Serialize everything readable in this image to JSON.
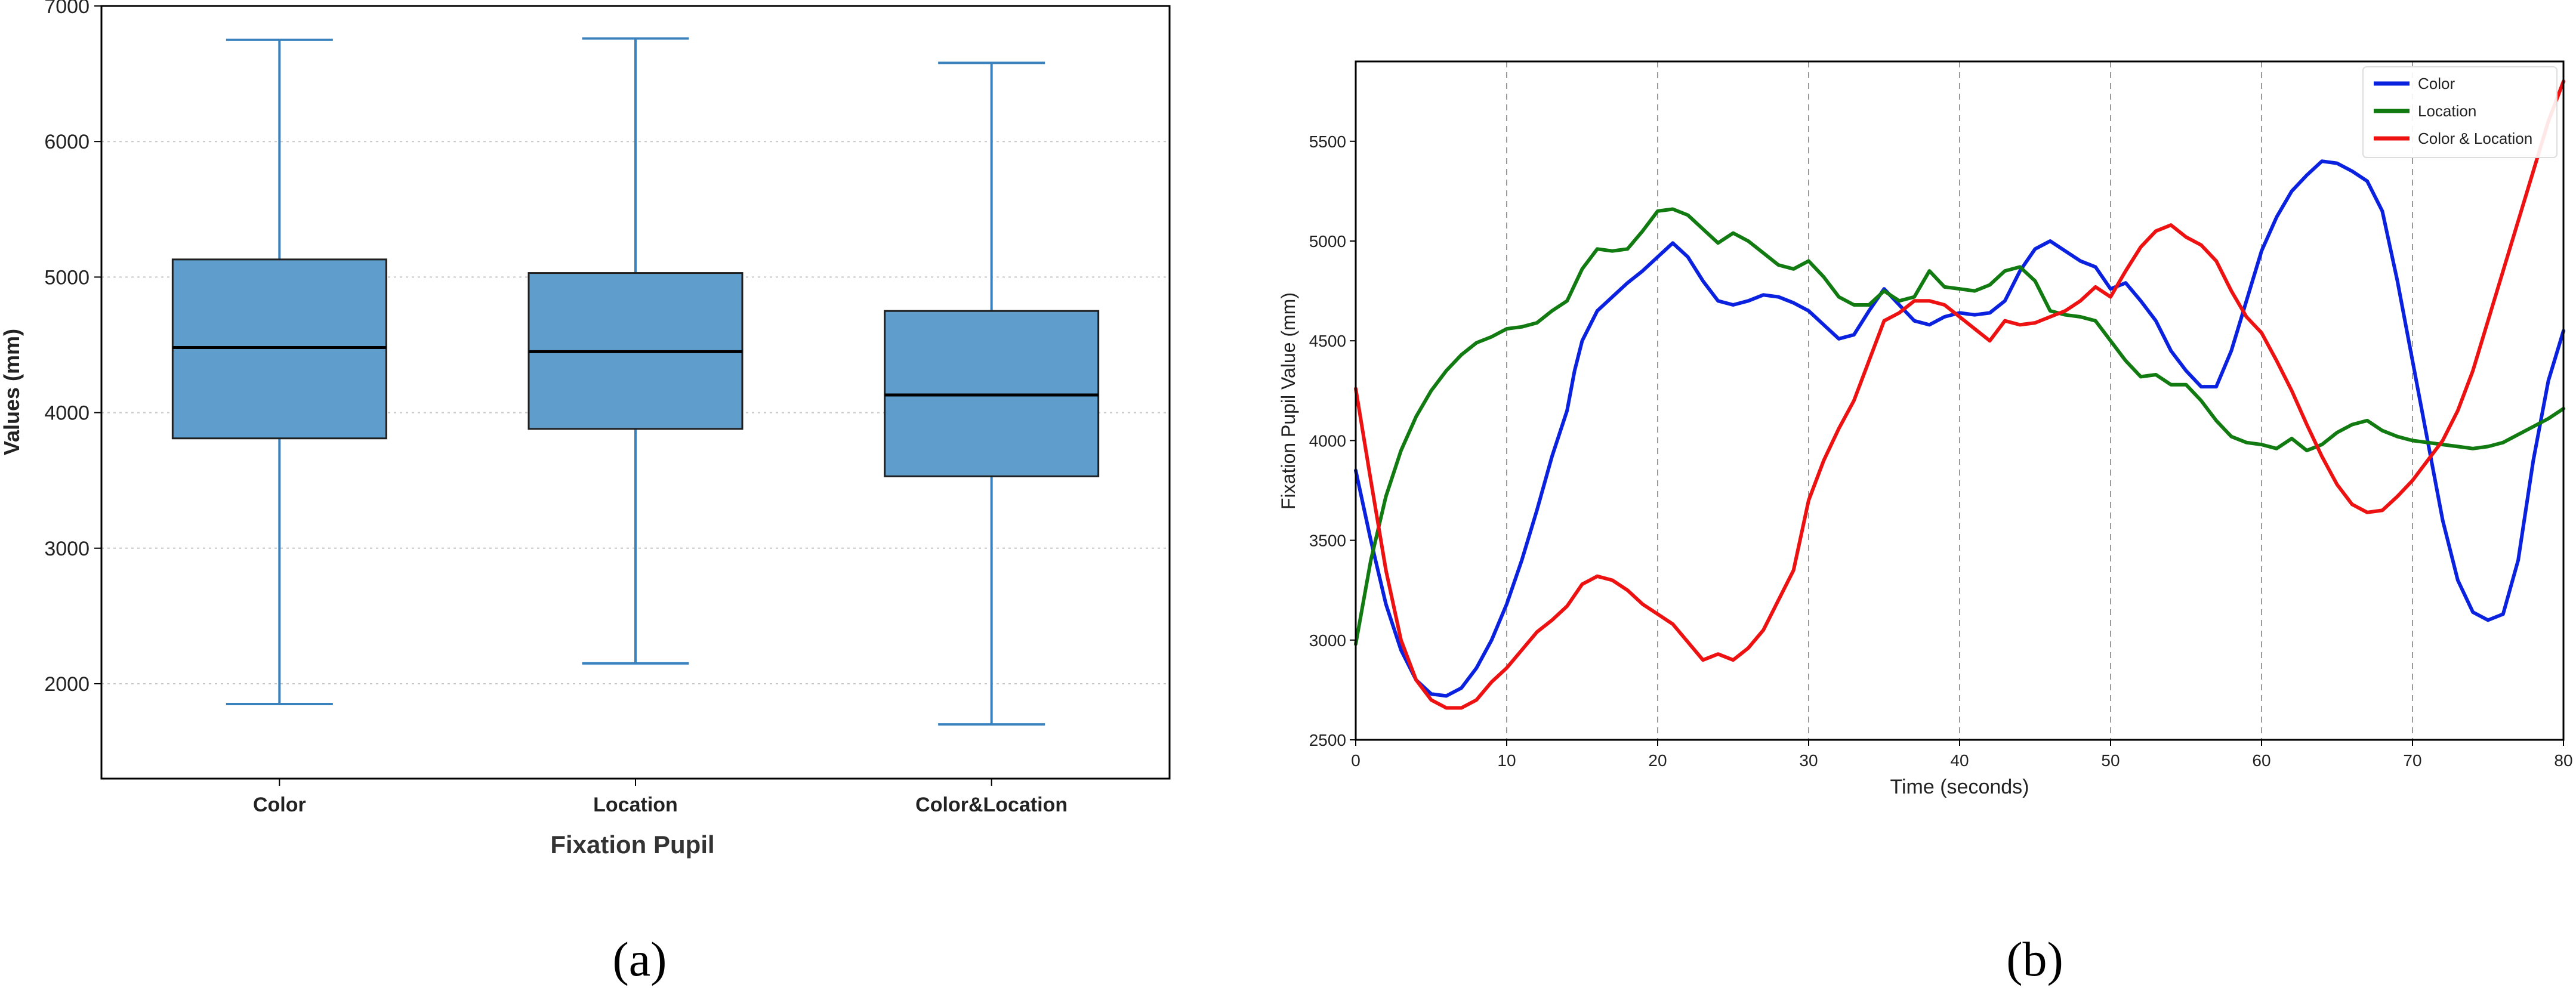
{
  "chart_data": [
    {
      "panel_label": "(a)",
      "type": "box",
      "categories": [
        "Color",
        "Location",
        "Color&Location"
      ],
      "boxes": [
        {
          "category": "Color",
          "whisker_low": 1850,
          "q1": 3810,
          "median": 4480,
          "q3": 5130,
          "whisker_high": 6750
        },
        {
          "category": "Location",
          "whisker_low": 2150,
          "q1": 3880,
          "median": 4450,
          "q3": 5030,
          "whisker_high": 6760
        },
        {
          "category": "Color&Location",
          "whisker_low": 1700,
          "q1": 3530,
          "median": 4130,
          "q3": 4750,
          "whisker_high": 6580
        }
      ],
      "xlabel": "Fixation Pupil",
      "ylabel": "Values (mm)",
      "ylim": [
        1300,
        7000
      ],
      "yticks": [
        2000,
        3000,
        4000,
        5000,
        6000,
        7000
      ],
      "grid": "horizontal dotted",
      "colors": {
        "box_fill": "#5f9ecc",
        "box_edge": "#1f1f1f",
        "whisker": "#3a82bd",
        "median": "#000000"
      }
    },
    {
      "panel_label": "(b)",
      "type": "line",
      "xlabel": "Time (seconds)",
      "ylabel": "Fixation Pupil Value (mm)",
      "xlim": [
        0,
        80
      ],
      "ylim": [
        2500,
        5900
      ],
      "xticks": [
        0,
        10,
        20,
        30,
        40,
        50,
        60,
        70,
        80
      ],
      "yticks": [
        2500,
        3000,
        3500,
        4000,
        4500,
        5000,
        5500
      ],
      "grid": "vertical dashed",
      "legend_position": "top-right",
      "series": [
        {
          "name": "Color",
          "color": "#0a22e0",
          "points": [
            [
              0,
              3850
            ],
            [
              1,
              3500
            ],
            [
              2,
              3180
            ],
            [
              3,
              2950
            ],
            [
              4,
              2800
            ],
            [
              5,
              2730
            ],
            [
              6,
              2720
            ],
            [
              7,
              2760
            ],
            [
              8,
              2860
            ],
            [
              9,
              3000
            ],
            [
              10,
              3180
            ],
            [
              11,
              3400
            ],
            [
              12,
              3650
            ],
            [
              13,
              3920
            ],
            [
              14,
              4150
            ],
            [
              14.5,
              4350
            ],
            [
              15,
              4500
            ],
            [
              16,
              4650
            ],
            [
              17,
              4720
            ],
            [
              18,
              4790
            ],
            [
              19,
              4850
            ],
            [
              20,
              4920
            ],
            [
              21,
              4990
            ],
            [
              22,
              4920
            ],
            [
              23,
              4800
            ],
            [
              24,
              4700
            ],
            [
              25,
              4680
            ],
            [
              26,
              4700
            ],
            [
              27,
              4730
            ],
            [
              28,
              4720
            ],
            [
              29,
              4690
            ],
            [
              30,
              4650
            ],
            [
              31,
              4580
            ],
            [
              32,
              4510
            ],
            [
              33,
              4530
            ],
            [
              34,
              4650
            ],
            [
              35,
              4760
            ],
            [
              36,
              4680
            ],
            [
              37,
              4600
            ],
            [
              38,
              4580
            ],
            [
              39,
              4620
            ],
            [
              40,
              4640
            ],
            [
              41,
              4630
            ],
            [
              42,
              4640
            ],
            [
              43,
              4700
            ],
            [
              44,
              4850
            ],
            [
              45,
              4960
            ],
            [
              46,
              5000
            ],
            [
              47,
              4950
            ],
            [
              48,
              4900
            ],
            [
              49,
              4870
            ],
            [
              50,
              4760
            ],
            [
              51,
              4790
            ],
            [
              52,
              4700
            ],
            [
              53,
              4600
            ],
            [
              54,
              4450
            ],
            [
              55,
              4350
            ],
            [
              56,
              4270
            ],
            [
              57,
              4270
            ],
            [
              58,
              4450
            ],
            [
              59,
              4700
            ],
            [
              60,
              4950
            ],
            [
              61,
              5120
            ],
            [
              62,
              5250
            ],
            [
              63,
              5330
            ],
            [
              64,
              5400
            ],
            [
              65,
              5390
            ],
            [
              66,
              5350
            ],
            [
              67,
              5300
            ],
            [
              68,
              5150
            ],
            [
              69,
              4800
            ],
            [
              70,
              4400
            ],
            [
              71,
              4000
            ],
            [
              72,
              3600
            ],
            [
              73,
              3300
            ],
            [
              74,
              3140
            ],
            [
              75,
              3100
            ],
            [
              76,
              3130
            ],
            [
              77,
              3400
            ],
            [
              78,
              3900
            ],
            [
              79,
              4300
            ],
            [
              80,
              4550
            ]
          ]
        },
        {
          "name": "Location",
          "color": "#117a11",
          "points": [
            [
              0,
              2980
            ],
            [
              1,
              3400
            ],
            [
              2,
              3720
            ],
            [
              3,
              3950
            ],
            [
              4,
              4120
            ],
            [
              5,
              4250
            ],
            [
              6,
              4350
            ],
            [
              7,
              4430
            ],
            [
              8,
              4490
            ],
            [
              9,
              4520
            ],
            [
              10,
              4560
            ],
            [
              11,
              4570
            ],
            [
              12,
              4590
            ],
            [
              13,
              4650
            ],
            [
              14,
              4700
            ],
            [
              15,
              4860
            ],
            [
              16,
              4960
            ],
            [
              17,
              4950
            ],
            [
              18,
              4960
            ],
            [
              19,
              5050
            ],
            [
              20,
              5150
            ],
            [
              21,
              5160
            ],
            [
              22,
              5130
            ],
            [
              23,
              5060
            ],
            [
              24,
              4990
            ],
            [
              25,
              5040
            ],
            [
              26,
              5000
            ],
            [
              27,
              4940
            ],
            [
              28,
              4880
            ],
            [
              29,
              4860
            ],
            [
              30,
              4900
            ],
            [
              31,
              4820
            ],
            [
              32,
              4720
            ],
            [
              33,
              4680
            ],
            [
              34,
              4680
            ],
            [
              35,
              4750
            ],
            [
              36,
              4700
            ],
            [
              37,
              4720
            ],
            [
              38,
              4850
            ],
            [
              39,
              4770
            ],
            [
              40,
              4760
            ],
            [
              41,
              4750
            ],
            [
              42,
              4780
            ],
            [
              43,
              4850
            ],
            [
              44,
              4870
            ],
            [
              45,
              4800
            ],
            [
              46,
              4650
            ],
            [
              47,
              4630
            ],
            [
              48,
              4620
            ],
            [
              49,
              4600
            ],
            [
              50,
              4500
            ],
            [
              51,
              4400
            ],
            [
              52,
              4320
            ],
            [
              53,
              4330
            ],
            [
              54,
              4280
            ],
            [
              55,
              4280
            ],
            [
              56,
              4200
            ],
            [
              57,
              4100
            ],
            [
              58,
              4020
            ],
            [
              59,
              3990
            ],
            [
              60,
              3980
            ],
            [
              61,
              3960
            ],
            [
              62,
              4010
            ],
            [
              63,
              3950
            ],
            [
              64,
              3980
            ],
            [
              65,
              4040
            ],
            [
              66,
              4080
            ],
            [
              67,
              4100
            ],
            [
              68,
              4050
            ],
            [
              69,
              4020
            ],
            [
              70,
              4000
            ],
            [
              71,
              3990
            ],
            [
              72,
              3980
            ],
            [
              73,
              3970
            ],
            [
              74,
              3960
            ],
            [
              75,
              3970
            ],
            [
              76,
              3990
            ],
            [
              77,
              4030
            ],
            [
              78,
              4070
            ],
            [
              79,
              4110
            ],
            [
              80,
              4160
            ]
          ]
        },
        {
          "name": "Color & Location",
          "color": "#ee1111",
          "points": [
            [
              0,
              4260
            ],
            [
              1,
              3800
            ],
            [
              2,
              3350
            ],
            [
              3,
              3000
            ],
            [
              4,
              2800
            ],
            [
              5,
              2700
            ],
            [
              6,
              2660
            ],
            [
              7,
              2660
            ],
            [
              8,
              2700
            ],
            [
              9,
              2790
            ],
            [
              10,
              2860
            ],
            [
              11,
              2950
            ],
            [
              12,
              3040
            ],
            [
              13,
              3100
            ],
            [
              14,
              3170
            ],
            [
              15,
              3280
            ],
            [
              16,
              3320
            ],
            [
              17,
              3300
            ],
            [
              18,
              3250
            ],
            [
              19,
              3180
            ],
            [
              20,
              3130
            ],
            [
              21,
              3080
            ],
            [
              22,
              2990
            ],
            [
              23,
              2900
            ],
            [
              24,
              2930
            ],
            [
              25,
              2900
            ],
            [
              26,
              2960
            ],
            [
              27,
              3050
            ],
            [
              28,
              3200
            ],
            [
              29,
              3350
            ],
            [
              30,
              3700
            ],
            [
              31,
              3900
            ],
            [
              32,
              4060
            ],
            [
              33,
              4200
            ],
            [
              34,
              4400
            ],
            [
              35,
              4600
            ],
            [
              36,
              4640
            ],
            [
              37,
              4700
            ],
            [
              38,
              4700
            ],
            [
              39,
              4680
            ],
            [
              40,
              4620
            ],
            [
              41,
              4560
            ],
            [
              42,
              4500
            ],
            [
              43,
              4600
            ],
            [
              44,
              4580
            ],
            [
              45,
              4590
            ],
            [
              46,
              4620
            ],
            [
              47,
              4650
            ],
            [
              48,
              4700
            ],
            [
              49,
              4770
            ],
            [
              50,
              4720
            ],
            [
              51,
              4850
            ],
            [
              52,
              4970
            ],
            [
              53,
              5050
            ],
            [
              54,
              5080
            ],
            [
              55,
              5020
            ],
            [
              56,
              4980
            ],
            [
              57,
              4900
            ],
            [
              58,
              4750
            ],
            [
              59,
              4620
            ],
            [
              60,
              4540
            ],
            [
              61,
              4400
            ],
            [
              62,
              4250
            ],
            [
              63,
              4080
            ],
            [
              64,
              3920
            ],
            [
              65,
              3780
            ],
            [
              66,
              3680
            ],
            [
              67,
              3640
            ],
            [
              68,
              3650
            ],
            [
              69,
              3720
            ],
            [
              70,
              3800
            ],
            [
              71,
              3900
            ],
            [
              72,
              4000
            ],
            [
              73,
              4150
            ],
            [
              74,
              4350
            ],
            [
              75,
              4600
            ],
            [
              76,
              4850
            ],
            [
              77,
              5100
            ],
            [
              78,
              5350
            ],
            [
              79,
              5600
            ],
            [
              80,
              5800
            ]
          ]
        }
      ]
    }
  ]
}
